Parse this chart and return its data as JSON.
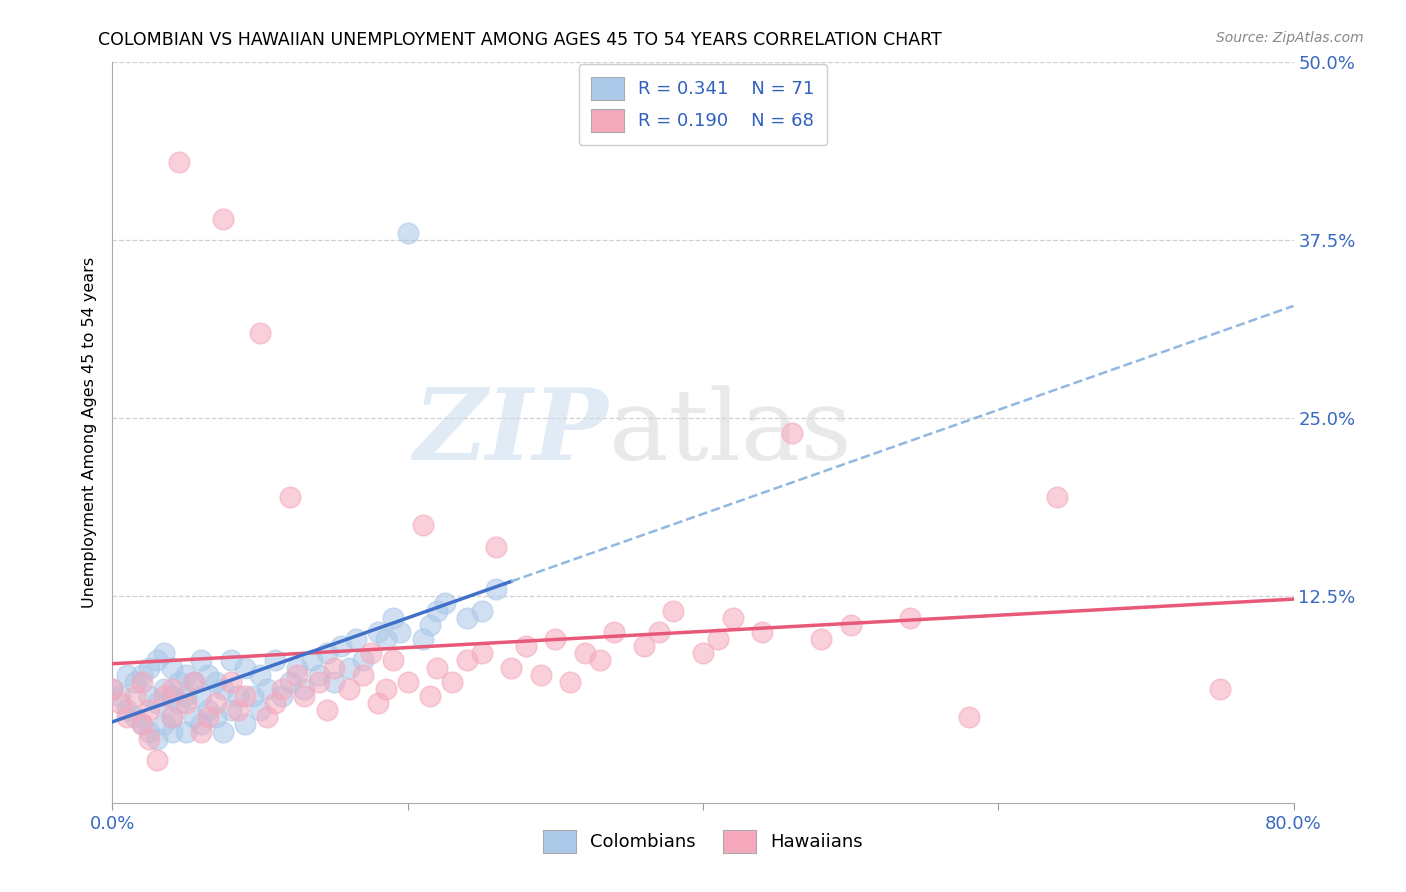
{
  "title": "COLOMBIAN VS HAWAIIAN UNEMPLOYMENT AMONG AGES 45 TO 54 YEARS CORRELATION CHART",
  "source": "Source: ZipAtlas.com",
  "ylabel": "Unemployment Among Ages 45 to 54 years",
  "xlim": [
    0.0,
    0.8
  ],
  "ylim": [
    -0.02,
    0.5
  ],
  "xticks": [
    0.0,
    0.2,
    0.4,
    0.6,
    0.8
  ],
  "xticklabels": [
    "0.0%",
    "",
    "",
    "",
    "80.0%"
  ],
  "yticks": [
    0.0,
    0.125,
    0.25,
    0.375,
    0.5
  ],
  "yticklabels": [
    "",
    "12.5%",
    "25.0%",
    "37.5%",
    "50.0%"
  ],
  "colombians_R": "0.341",
  "colombians_N": "71",
  "hawaiians_R": "0.190",
  "hawaiians_N": "68",
  "colombian_color": "#aac8e8",
  "hawaiian_color": "#f5a8bc",
  "colombian_line_color": "#4070c8",
  "hawaiian_line_color": "#e85878",
  "colombian_dash_color": "#90b8e0",
  "background_color": "#ffffff",
  "watermark_zip": "ZIP",
  "watermark_atlas": "atlas",
  "colombians_x": [
    0.0,
    0.005,
    0.01,
    0.01,
    0.015,
    0.015,
    0.02,
    0.02,
    0.025,
    0.025,
    0.025,
    0.03,
    0.03,
    0.03,
    0.035,
    0.035,
    0.035,
    0.04,
    0.04,
    0.04,
    0.04,
    0.045,
    0.045,
    0.05,
    0.05,
    0.05,
    0.055,
    0.055,
    0.06,
    0.06,
    0.06,
    0.065,
    0.065,
    0.07,
    0.07,
    0.075,
    0.075,
    0.08,
    0.08,
    0.085,
    0.09,
    0.09,
    0.095,
    0.1,
    0.1,
    0.105,
    0.11,
    0.115,
    0.12,
    0.125,
    0.13,
    0.135,
    0.14,
    0.145,
    0.15,
    0.155,
    0.16,
    0.165,
    0.17,
    0.18,
    0.185,
    0.19,
    0.195,
    0.2,
    0.21,
    0.215,
    0.22,
    0.225,
    0.24,
    0.25,
    0.26
  ],
  "colombians_y": [
    0.06,
    0.055,
    0.045,
    0.07,
    0.04,
    0.065,
    0.035,
    0.07,
    0.03,
    0.055,
    0.075,
    0.025,
    0.05,
    0.08,
    0.035,
    0.06,
    0.085,
    0.03,
    0.055,
    0.04,
    0.075,
    0.05,
    0.065,
    0.03,
    0.055,
    0.07,
    0.04,
    0.065,
    0.035,
    0.055,
    0.08,
    0.045,
    0.07,
    0.04,
    0.065,
    0.03,
    0.06,
    0.045,
    0.08,
    0.055,
    0.035,
    0.075,
    0.055,
    0.045,
    0.07,
    0.06,
    0.08,
    0.055,
    0.065,
    0.075,
    0.06,
    0.08,
    0.07,
    0.085,
    0.065,
    0.09,
    0.075,
    0.095,
    0.08,
    0.1,
    0.095,
    0.11,
    0.1,
    0.38,
    0.095,
    0.105,
    0.115,
    0.12,
    0.11,
    0.115,
    0.13
  ],
  "hawaiians_x": [
    0.0,
    0.005,
    0.01,
    0.015,
    0.02,
    0.02,
    0.025,
    0.025,
    0.03,
    0.035,
    0.04,
    0.04,
    0.045,
    0.05,
    0.055,
    0.06,
    0.065,
    0.07,
    0.075,
    0.08,
    0.085,
    0.09,
    0.1,
    0.105,
    0.11,
    0.115,
    0.12,
    0.125,
    0.13,
    0.14,
    0.145,
    0.15,
    0.16,
    0.17,
    0.175,
    0.18,
    0.185,
    0.19,
    0.2,
    0.21,
    0.215,
    0.22,
    0.23,
    0.24,
    0.25,
    0.26,
    0.27,
    0.28,
    0.29,
    0.3,
    0.31,
    0.32,
    0.33,
    0.34,
    0.36,
    0.37,
    0.38,
    0.4,
    0.41,
    0.42,
    0.44,
    0.46,
    0.48,
    0.5,
    0.54,
    0.58,
    0.64,
    0.75
  ],
  "hawaiians_y": [
    0.06,
    0.05,
    0.04,
    0.055,
    0.035,
    0.065,
    0.025,
    0.045,
    0.01,
    0.055,
    0.04,
    0.06,
    0.43,
    0.05,
    0.065,
    0.03,
    0.04,
    0.05,
    0.39,
    0.065,
    0.045,
    0.055,
    0.31,
    0.04,
    0.05,
    0.06,
    0.195,
    0.07,
    0.055,
    0.065,
    0.045,
    0.075,
    0.06,
    0.07,
    0.085,
    0.05,
    0.06,
    0.08,
    0.065,
    0.175,
    0.055,
    0.075,
    0.065,
    0.08,
    0.085,
    0.16,
    0.075,
    0.09,
    0.07,
    0.095,
    0.065,
    0.085,
    0.08,
    0.1,
    0.09,
    0.1,
    0.115,
    0.085,
    0.095,
    0.11,
    0.1,
    0.24,
    0.095,
    0.105,
    0.11,
    0.04,
    0.195,
    0.06
  ]
}
